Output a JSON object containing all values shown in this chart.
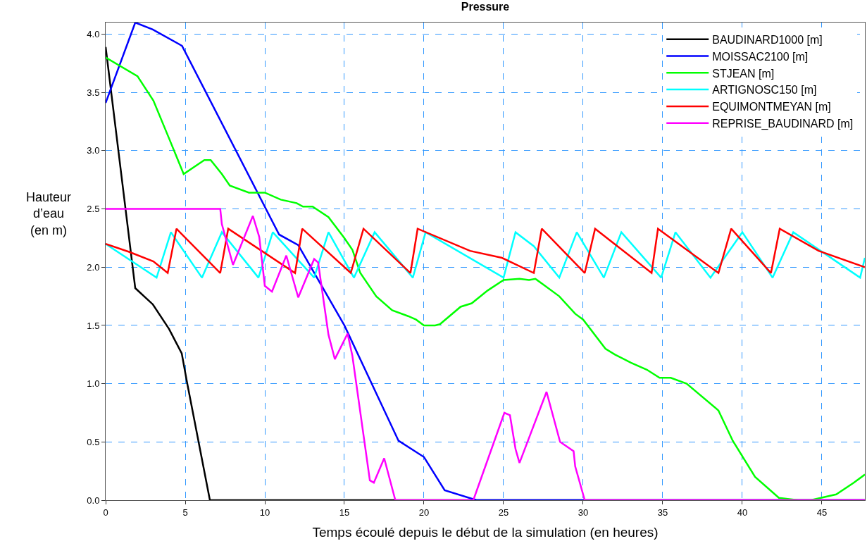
{
  "chart_data": {
    "type": "line",
    "title": "Pressure",
    "xlabel": "Temps écoulé depuis le début de la simulation (en heures)",
    "ylabel": "Hauteur\nd’eau\n(en m)",
    "xlim": [
      0,
      47.7
    ],
    "xticks": [
      0,
      5,
      10,
      15,
      20,
      25,
      30,
      35,
      40,
      45
    ],
    "ylim": [
      0,
      4.1
    ],
    "yticks": [
      {
        "value": 0,
        "label": "0.0"
      },
      {
        "value": 0.5,
        "label": "0.5"
      },
      {
        "value": 1,
        "label": "1.0"
      },
      {
        "value": 1.5,
        "label": "1.5"
      },
      {
        "value": 2,
        "label": "2.0"
      },
      {
        "value": 2.5,
        "label": "2.5"
      },
      {
        "value": 3,
        "label": "3.0"
      },
      {
        "value": 3.5,
        "label": "3.5"
      },
      {
        "value": 4,
        "label": "4.0"
      }
    ],
    "grid": true,
    "legend": "top right",
    "marker": "none",
    "line_style": "solid",
    "series": [
      {
        "name": "BAUDINARD1000 [m]",
        "color": "#000000",
        "x": [
          0,
          1.86,
          2.97,
          3.98,
          4.78,
          5.1,
          6.55,
          47.7
        ],
        "values": [
          3.89,
          1.82,
          1.68,
          1.47,
          1.26,
          1.02,
          0,
          0
        ]
      },
      {
        "name": "MOISSAC2100 [m]",
        "color": "#0000ff",
        "x": [
          0,
          1.86,
          2.96,
          4.8,
          10.9,
          12.1,
          15.0,
          18.4,
          20.0,
          21.3,
          23.3,
          47.7
        ],
        "values": [
          3.41,
          4.1,
          4.04,
          3.9,
          2.28,
          2.19,
          1.5,
          0.51,
          0.37,
          0.085,
          0,
          0
        ]
      },
      {
        "name": "STJEAN [m]",
        "color": "#00ff00",
        "x": [
          0,
          2,
          3,
          4,
          4.9,
          6.2,
          6.6,
          7.3,
          7.8,
          9,
          10,
          11,
          12,
          12.4,
          13,
          14,
          15,
          15.5,
          16,
          17,
          18,
          19,
          19.5,
          20,
          20.7,
          21,
          22.3,
          23,
          24,
          25,
          26,
          26.6,
          27,
          27.5,
          28.5,
          29.5,
          30,
          31.4,
          32,
          33,
          34,
          34.8,
          35.5,
          36.5,
          38.5,
          39.4,
          40.8,
          42.3,
          43.5,
          44.3,
          45.9,
          47,
          47.7
        ],
        "values": [
          3.8,
          3.64,
          3.43,
          3.1,
          2.8,
          2.92,
          2.92,
          2.8,
          2.7,
          2.64,
          2.64,
          2.58,
          2.55,
          2.52,
          2.52,
          2.43,
          2.25,
          2.15,
          1.95,
          1.75,
          1.63,
          1.58,
          1.55,
          1.5,
          1.5,
          1.51,
          1.66,
          1.69,
          1.8,
          1.89,
          1.9,
          1.89,
          1.9,
          1.85,
          1.75,
          1.6,
          1.55,
          1.3,
          1.25,
          1.18,
          1.12,
          1.05,
          1.05,
          1.0,
          0.77,
          0.51,
          0.2,
          0.02,
          0,
          0,
          0.05,
          0.15,
          0.22
        ]
      },
      {
        "name": "ARTIGNOSC150 [m]",
        "color": "#00ffff",
        "x": [
          0,
          3.2,
          4.1,
          6.05,
          7.3,
          9.6,
          10.5,
          13.1,
          14.0,
          15.6,
          16.9,
          19.3,
          20.1,
          25.0,
          25.75,
          26.9,
          28.5,
          29.6,
          31.3,
          32.4,
          34.9,
          35.8,
          38.0,
          40.0,
          41.9,
          43.2,
          47.4,
          47.7
        ],
        "values": [
          2.2,
          1.91,
          2.3,
          1.91,
          2.3,
          1.91,
          2.3,
          1.91,
          2.3,
          1.91,
          2.3,
          1.91,
          2.3,
          1.91,
          2.3,
          2.18,
          1.91,
          2.3,
          1.91,
          2.3,
          1.91,
          2.3,
          1.91,
          2.3,
          1.91,
          2.3,
          1.91,
          2.08
        ]
      },
      {
        "name": "EQUIMONTMEYAN [m]",
        "color": "#ff0000",
        "x": [
          0,
          1.5,
          3.0,
          3.9,
          4.45,
          7.2,
          7.7,
          11.9,
          12.35,
          15.4,
          16.2,
          19.15,
          19.6,
          22.9,
          24.9,
          26.9,
          27.4,
          30.1,
          30.75,
          34.3,
          34.7,
          38.5,
          39.3,
          41.8,
          42.35,
          44.8,
          47.7
        ],
        "values": [
          2.2,
          2.13,
          2.05,
          1.95,
          2.33,
          1.95,
          2.33,
          1.95,
          2.33,
          1.95,
          2.33,
          1.95,
          2.33,
          2.14,
          2.08,
          1.95,
          2.33,
          1.95,
          2.33,
          1.95,
          2.33,
          1.95,
          2.33,
          1.95,
          2.33,
          2.14,
          2.0
        ]
      },
      {
        "name": "REPRISE_BAUDINARD [m]",
        "color": "#ff00ff",
        "x": [
          0,
          7.2,
          7.3,
          8.0,
          9.25,
          9.65,
          10.0,
          10.45,
          11.35,
          12.1,
          13.1,
          13.35,
          14.0,
          14.4,
          15.2,
          15.5,
          16.6,
          16.85,
          17.5,
          18.2,
          23.1,
          25.05,
          25.4,
          25.75,
          26.0,
          27.7,
          28.55,
          29.4,
          29.5,
          30.1,
          47.7
        ],
        "values": [
          2.5,
          2.5,
          2.37,
          2.02,
          2.44,
          2.26,
          1.84,
          1.79,
          2.1,
          1.74,
          2.07,
          2.04,
          1.42,
          1.21,
          1.43,
          1.24,
          0.17,
          0.15,
          0.36,
          0,
          0,
          0.75,
          0.73,
          0.44,
          0.32,
          0.93,
          0.5,
          0.42,
          0.29,
          0,
          0
        ]
      }
    ]
  }
}
